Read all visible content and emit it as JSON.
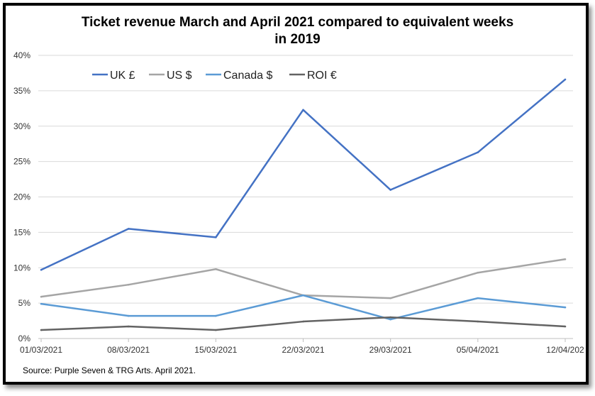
{
  "chart_data": {
    "type": "line",
    "title_lines": [
      "Ticket revenue March and April 2021 compared to equivalent weeks",
      "in 2019"
    ],
    "categories": [
      "01/03/2021",
      "08/03/2021",
      "15/03/2021",
      "22/03/2021",
      "29/03/2021",
      "05/04/2021",
      "12/04/202"
    ],
    "y_ticks": [
      "0%",
      "5%",
      "10%",
      "15%",
      "20%",
      "25%",
      "30%",
      "35%",
      "40%"
    ],
    "ylim": [
      0,
      40
    ],
    "grid": true,
    "legend_position": "top-left",
    "series": [
      {
        "name": "UK £",
        "color": "#4472C4",
        "values": [
          9.7,
          15.5,
          14.3,
          32.3,
          21.0,
          26.3,
          36.6
        ]
      },
      {
        "name": "US $",
        "color": "#A5A5A5",
        "values": [
          5.9,
          7.6,
          9.8,
          6.1,
          5.7,
          9.3,
          11.2
        ]
      },
      {
        "name": "Canada $",
        "color": "#5B9BD5",
        "values": [
          4.9,
          3.2,
          3.2,
          6.1,
          2.7,
          5.7,
          4.4
        ]
      },
      {
        "name": "ROI €",
        "color": "#636363",
        "values": [
          1.2,
          1.7,
          1.2,
          2.4,
          3.0,
          2.4,
          1.7
        ]
      }
    ]
  },
  "source": "Source: Purple Seven & TRG Arts. April 2021."
}
